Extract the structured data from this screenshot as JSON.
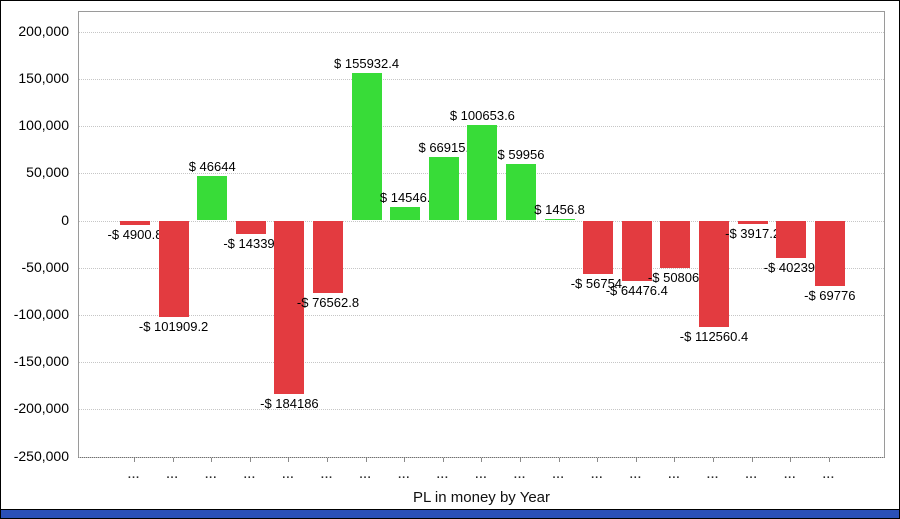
{
  "chart_data": {
    "type": "bar",
    "title": "",
    "xlabel": "PL in money by Year",
    "ylabel": "",
    "ylim": [
      -250000,
      220000
    ],
    "grid": "horizontal-dotted",
    "legend": "none",
    "y_ticks": [
      {
        "label": "200,000",
        "value": 200000
      },
      {
        "label": "150,000",
        "value": 150000
      },
      {
        "label": "100,000",
        "value": 100000
      },
      {
        "label": "50,000",
        "value": 50000
      },
      {
        "label": "0",
        "value": 0
      },
      {
        "label": "-50,000",
        "value": -50000
      },
      {
        "label": "-100,000",
        "value": -100000
      },
      {
        "label": "-150,000",
        "value": -150000
      },
      {
        "label": "-200,000",
        "value": -200000
      },
      {
        "label": "-250,000",
        "value": -250000
      }
    ],
    "x_tick_label": "...",
    "points": [
      {
        "label": "-$ 4900.8",
        "value": -4900.8
      },
      {
        "label": "-$ 101909.2",
        "value": -101909.2
      },
      {
        "label": "$ 46644",
        "value": 46644
      },
      {
        "label": "-$ 14339.",
        "value": -14339.2
      },
      {
        "label": "-$ 184186",
        "value": -184186
      },
      {
        "label": "-$ 76562.8",
        "value": -76562.8
      },
      {
        "label": "$ 155932.4",
        "value": 155932.4
      },
      {
        "label": "$ 14546.",
        "value": 14546.4
      },
      {
        "label": "$ 66915.",
        "value": 66915.2
      },
      {
        "label": "$ 100653.6",
        "value": 100653.6
      },
      {
        "label": "$ 59956",
        "value": 59956
      },
      {
        "label": "$ 1456.8",
        "value": 1456.8
      },
      {
        "label": "-$ 56754.",
        "value": -56754
      },
      {
        "label": "-$ 64476.4",
        "value": -64476.4
      },
      {
        "label": "-$ 50806.",
        "value": -50806
      },
      {
        "label": "-$ 112560.4",
        "value": -112560.4
      },
      {
        "label": "-$ 3917.2",
        "value": -3917.2
      },
      {
        "label": "-$ 40239.",
        "value": -40239.2
      },
      {
        "label": "-$ 69776",
        "value": -69776
      }
    ],
    "colors": {
      "positive": "#38dc38",
      "negative": "#e33b40",
      "grid": "#c6c6c6",
      "axis": "#9a9a9a",
      "bottom_bar": "#2b50b8"
    }
  }
}
